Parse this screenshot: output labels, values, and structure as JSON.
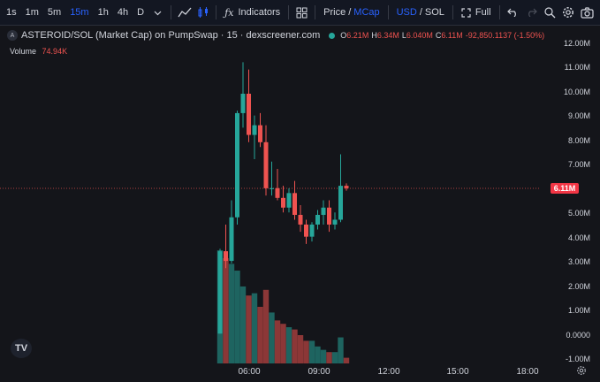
{
  "toolbar": {
    "timeframes": [
      "1s",
      "1m",
      "5m",
      "15m",
      "1h",
      "4h",
      "D"
    ],
    "active_timeframe": "15m",
    "indicators_label": "Indicators",
    "price_label": "Price",
    "mcap_label": "MCap",
    "usd_label": "USD",
    "slash": "/",
    "sol_label": "SOL",
    "full_label": "Full"
  },
  "legend": {
    "logo_text": "A",
    "title": "ASTEROID/SOL (Market Cap) on PumpSwap · 15 · dexscreener.com",
    "open_label": "O",
    "open_value": "6.21M",
    "high_label": "H",
    "high_value": "6.34M",
    "low_label": "L",
    "low_value": "6.040M",
    "close_label": "C",
    "close_value": "6.11M",
    "change": "-92,850.1137 (-1.50%)"
  },
  "volume_legend": {
    "label": "Volume",
    "value": "74.94K"
  },
  "price_tag": "6.11M",
  "colors": {
    "up": "#26a69a",
    "down": "#ef5350",
    "background": "#14151a",
    "accent": "#2962ff"
  },
  "chart_data": {
    "type": "candlestick",
    "y_axis_ticks": [
      "12.00M",
      "11.00M",
      "10.00M",
      "9.00M",
      "8.00M",
      "7.00M",
      "5.00M",
      "4.00M",
      "3.00M",
      "2.00M",
      "1.00M",
      "0.0000",
      "-1.00M"
    ],
    "x_axis_ticks": [
      "06:00",
      "09:00",
      "12:00",
      "15:00",
      "18:00"
    ],
    "last_price": 6.11,
    "candles": [
      {
        "o": 0.1,
        "h": 3.6,
        "l": 0.1,
        "c": 3.5
      },
      {
        "o": 3.5,
        "h": 4.6,
        "l": 2.8,
        "c": 3.1
      },
      {
        "o": 3.1,
        "h": 5.6,
        "l": 3.0,
        "c": 4.9
      },
      {
        "o": 4.9,
        "h": 9.3,
        "l": 4.6,
        "c": 9.2
      },
      {
        "o": 9.2,
        "h": 11.3,
        "l": 8.6,
        "c": 10.0
      },
      {
        "o": 10.0,
        "h": 11.0,
        "l": 8.0,
        "c": 8.3
      },
      {
        "o": 8.3,
        "h": 9.1,
        "l": 7.3,
        "c": 8.7
      },
      {
        "o": 8.7,
        "h": 9.2,
        "l": 7.8,
        "c": 8.0
      },
      {
        "o": 8.0,
        "h": 8.7,
        "l": 5.8,
        "c": 6.1
      },
      {
        "o": 6.1,
        "h": 7.2,
        "l": 5.8,
        "c": 6.1
      },
      {
        "o": 6.1,
        "h": 6.9,
        "l": 5.6,
        "c": 5.7
      },
      {
        "o": 5.7,
        "h": 6.2,
        "l": 5.1,
        "c": 5.3
      },
      {
        "o": 5.3,
        "h": 6.1,
        "l": 5.1,
        "c": 5.9
      },
      {
        "o": 5.9,
        "h": 6.4,
        "l": 4.8,
        "c": 5.0
      },
      {
        "o": 5.0,
        "h": 5.4,
        "l": 4.3,
        "c": 4.6
      },
      {
        "o": 4.6,
        "h": 4.8,
        "l": 3.8,
        "c": 4.1
      },
      {
        "o": 4.1,
        "h": 4.7,
        "l": 3.9,
        "c": 4.6
      },
      {
        "o": 4.6,
        "h": 5.2,
        "l": 4.4,
        "c": 5.0
      },
      {
        "o": 5.0,
        "h": 5.6,
        "l": 4.6,
        "c": 5.3
      },
      {
        "o": 5.3,
        "h": 5.6,
        "l": 4.3,
        "c": 4.6
      },
      {
        "o": 4.6,
        "h": 5.1,
        "l": 4.4,
        "c": 4.8
      },
      {
        "o": 4.8,
        "h": 7.5,
        "l": 4.7,
        "c": 6.2
      },
      {
        "o": 6.2,
        "h": 6.3,
        "l": 6.0,
        "c": 6.1
      }
    ],
    "volume_relative": [
      1.0,
      0.93,
      0.88,
      0.82,
      0.68,
      0.6,
      0.62,
      0.5,
      0.65,
      0.45,
      0.38,
      0.35,
      0.32,
      0.3,
      0.25,
      0.2,
      0.2,
      0.15,
      0.12,
      0.1,
      0.1,
      0.23,
      0.05
    ]
  }
}
